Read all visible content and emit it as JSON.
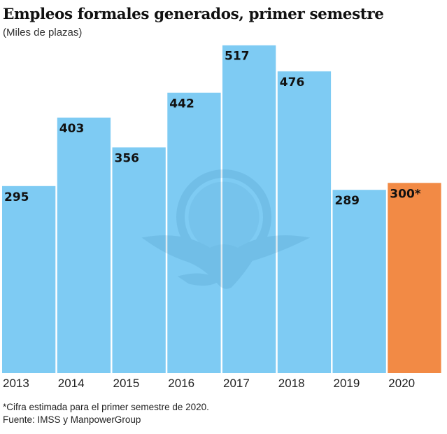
{
  "chart_data": {
    "type": "bar",
    "title": "Empleos formales generados, primer semestre",
    "subtitle": "(Miles de plazas)",
    "xlabel": "",
    "ylabel": "",
    "categories": [
      "2013",
      "2014",
      "2015",
      "2016",
      "2017",
      "2018",
      "2019",
      "2020"
    ],
    "values": [
      295,
      403,
      356,
      442,
      517,
      476,
      289,
      300
    ],
    "data_labels": [
      "295",
      "403",
      "356",
      "442",
      "517",
      "476",
      "289",
      "300*"
    ],
    "ylim": [
      0,
      520
    ],
    "grid": false,
    "colors": {
      "default": "#7ecbf3",
      "highlight": "#f28a45",
      "label": "#111111"
    },
    "highlight_index": 7
  },
  "footnotes": {
    "note": "*Cifra estimada para el primer semestre de 2020.",
    "source": "Fuente: IMSS y ManpowerGroup"
  },
  "watermark": {
    "icon": "globe-eagle-logo-icon"
  }
}
